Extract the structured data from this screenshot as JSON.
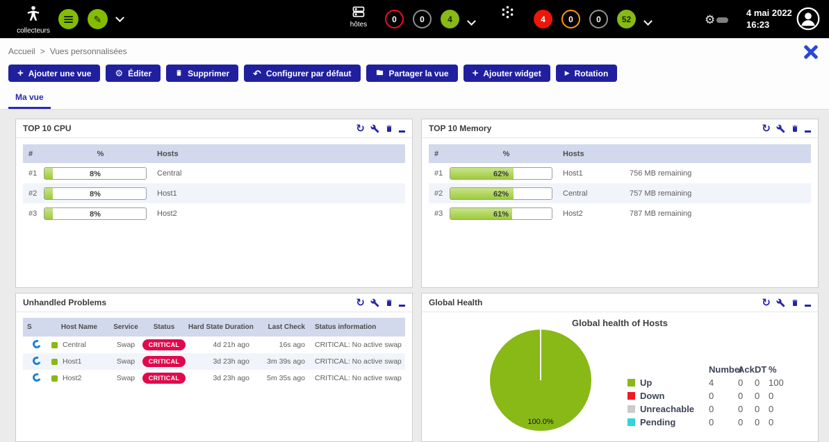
{
  "colors": {
    "brand_green": "#88b917",
    "navy_button": "#20209f",
    "critical_red": "#e0094d",
    "badge_red": "#ed1607",
    "badge_orange": "#ff9913",
    "badge_gray": "#8e9194",
    "table_header_bg": "#d3d9ec",
    "pending_cyan": "#2fd5da",
    "unreachable_gray": "#c9cbcd"
  },
  "topbar": {
    "collectors_label": "collecteurs",
    "hosts": {
      "label": "hôtes",
      "down": "0",
      "unreachable": "0",
      "up": "4"
    },
    "services": {
      "critical": "4",
      "warning": "0",
      "unknown": "0",
      "ok": "52"
    },
    "date": "4 mai 2022",
    "time": "16:23"
  },
  "breadcrumb": {
    "home": "Accueil",
    "separator": ">",
    "current": "Vues personnalisées"
  },
  "toolbar": {
    "add_view": "Ajouter une vue",
    "edit": "Éditer",
    "delete": "Supprimer",
    "set_default": "Configurer par défaut",
    "share": "Partager la vue",
    "add_widget": "Ajouter widget",
    "rotation": "Rotation"
  },
  "tab": {
    "label": "Ma vue"
  },
  "icons": {
    "refresh": "↻",
    "gear": "⚙",
    "undo": "↶",
    "play": "▶",
    "plus": "+",
    "pencil": "✎"
  },
  "widgets": {
    "cpu": {
      "title": "TOP 10 CPU",
      "columns": [
        "#",
        "%",
        "Hosts"
      ],
      "rows": [
        {
          "rank": "#1",
          "percent": 8,
          "percent_label": "8%",
          "host": "Central"
        },
        {
          "rank": "#2",
          "percent": 8,
          "percent_label": "8%",
          "host": "Host1"
        },
        {
          "rank": "#3",
          "percent": 8,
          "percent_label": "8%",
          "host": "Host2"
        }
      ]
    },
    "memory": {
      "title": "TOP 10 Memory",
      "columns": [
        "#",
        "%",
        "Hosts"
      ],
      "rows": [
        {
          "rank": "#1",
          "percent": 62,
          "percent_label": "62%",
          "host": "Host1",
          "remaining": "756 MB remaining"
        },
        {
          "rank": "#2",
          "percent": 62,
          "percent_label": "62%",
          "host": "Central",
          "remaining": "757 MB remaining"
        },
        {
          "rank": "#3",
          "percent": 61,
          "percent_label": "61%",
          "host": "Host2",
          "remaining": "787 MB remaining"
        }
      ]
    },
    "problems": {
      "title": "Unhandled Problems",
      "columns": [
        "S",
        "Host Name",
        "Service",
        "Status",
        "Hard State Duration",
        "Last Check",
        "Status information"
      ],
      "rows": [
        {
          "host": "Central",
          "service": "Swap",
          "status": "CRITICAL",
          "duration": "4d 21h ago",
          "last_check": "16s ago",
          "info": "CRITICAL: No active swap"
        },
        {
          "host": "Host1",
          "service": "Swap",
          "status": "CRITICAL",
          "duration": "3d 23h ago",
          "last_check": "3m 39s ago",
          "info": "CRITICAL: No active swap"
        },
        {
          "host": "Host2",
          "service": "Swap",
          "status": "CRITICAL",
          "duration": "3d 23h ago",
          "last_check": "5m 35s ago",
          "info": "CRITICAL: No active swap"
        }
      ]
    },
    "health": {
      "title": "Global Health",
      "chart_title": "Global health of Hosts",
      "pie_label": "100.0%",
      "pie": {
        "type": "pie",
        "labels": [
          "Up",
          "Down",
          "Unreachable",
          "Pending"
        ],
        "values": [
          100,
          0,
          0,
          0
        ]
      },
      "legend_columns": [
        "Number",
        "Ack",
        "DT",
        "%"
      ],
      "legend": [
        {
          "label": "Up",
          "color": "#88b917",
          "number": "4",
          "ack": "0",
          "dt": "0",
          "pct": "100"
        },
        {
          "label": "Down",
          "color": "#ed1c24",
          "number": "0",
          "ack": "0",
          "dt": "0",
          "pct": "0"
        },
        {
          "label": "Unreachable",
          "color": "#c9cbcd",
          "number": "0",
          "ack": "0",
          "dt": "0",
          "pct": "0"
        },
        {
          "label": "Pending",
          "color": "#2fd5da",
          "number": "0",
          "ack": "0",
          "dt": "0",
          "pct": "0"
        }
      ]
    }
  }
}
